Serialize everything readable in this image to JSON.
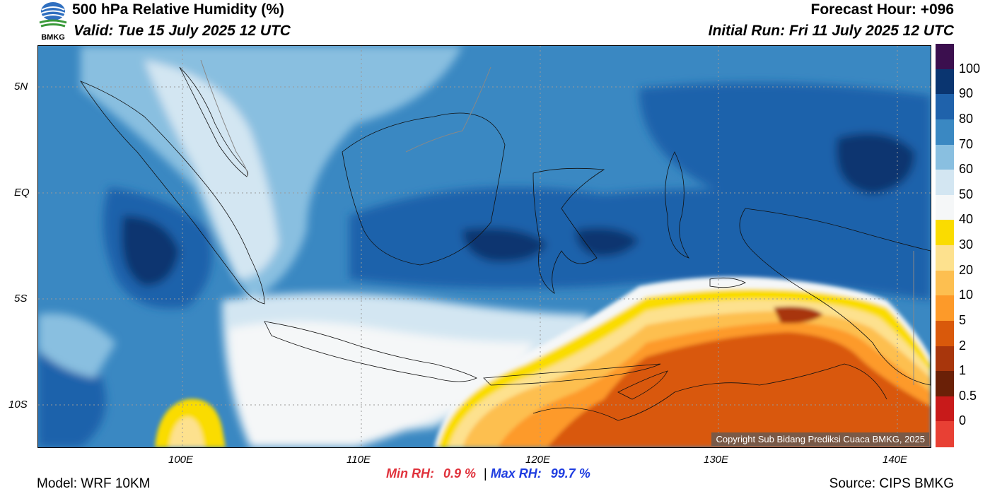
{
  "header": {
    "title": "500 hPa Relative Humidity (%)",
    "valid": "Valid: Tue 15 July 2025 12 UTC",
    "forecast_hour": "Forecast Hour: +096",
    "initial_run": "Initial Run: Fri 11 July 2025 12 UTC",
    "logo_text": "BMKG"
  },
  "axes": {
    "lat_labels": [
      "5N",
      "EQ",
      "5S",
      "10S"
    ],
    "lon_labels": [
      "100E",
      "110E",
      "120E",
      "130E",
      "140E"
    ]
  },
  "colorbar": {
    "labels": [
      "100",
      "90",
      "80",
      "70",
      "60",
      "50",
      "40",
      "30",
      "20",
      "10",
      "5",
      "2",
      "1",
      "0.5",
      "0"
    ],
    "colors": [
      "#3b0f4e",
      "#0a3570",
      "#1f62ab",
      "#3a88c2",
      "#89bfe0",
      "#d3e6f2",
      "#f5f7f8",
      "#fadc00",
      "#fde18e",
      "#fdbf50",
      "#fd9a29",
      "#d9590b",
      "#a8360c",
      "#6a2007",
      "#c81a1a",
      "#e84034"
    ]
  },
  "stats": {
    "min_label": "Min RH:",
    "min_value": "0.9 %",
    "separator": "|",
    "max_label": "Max RH:",
    "max_value": "99.7 %"
  },
  "footer": {
    "model": "Model: WRF 10KM",
    "source": "Source: CIPS BMKG",
    "copyright": "Copyright Sub Bidang Prediksi Cuaca BMKG, 2025"
  }
}
